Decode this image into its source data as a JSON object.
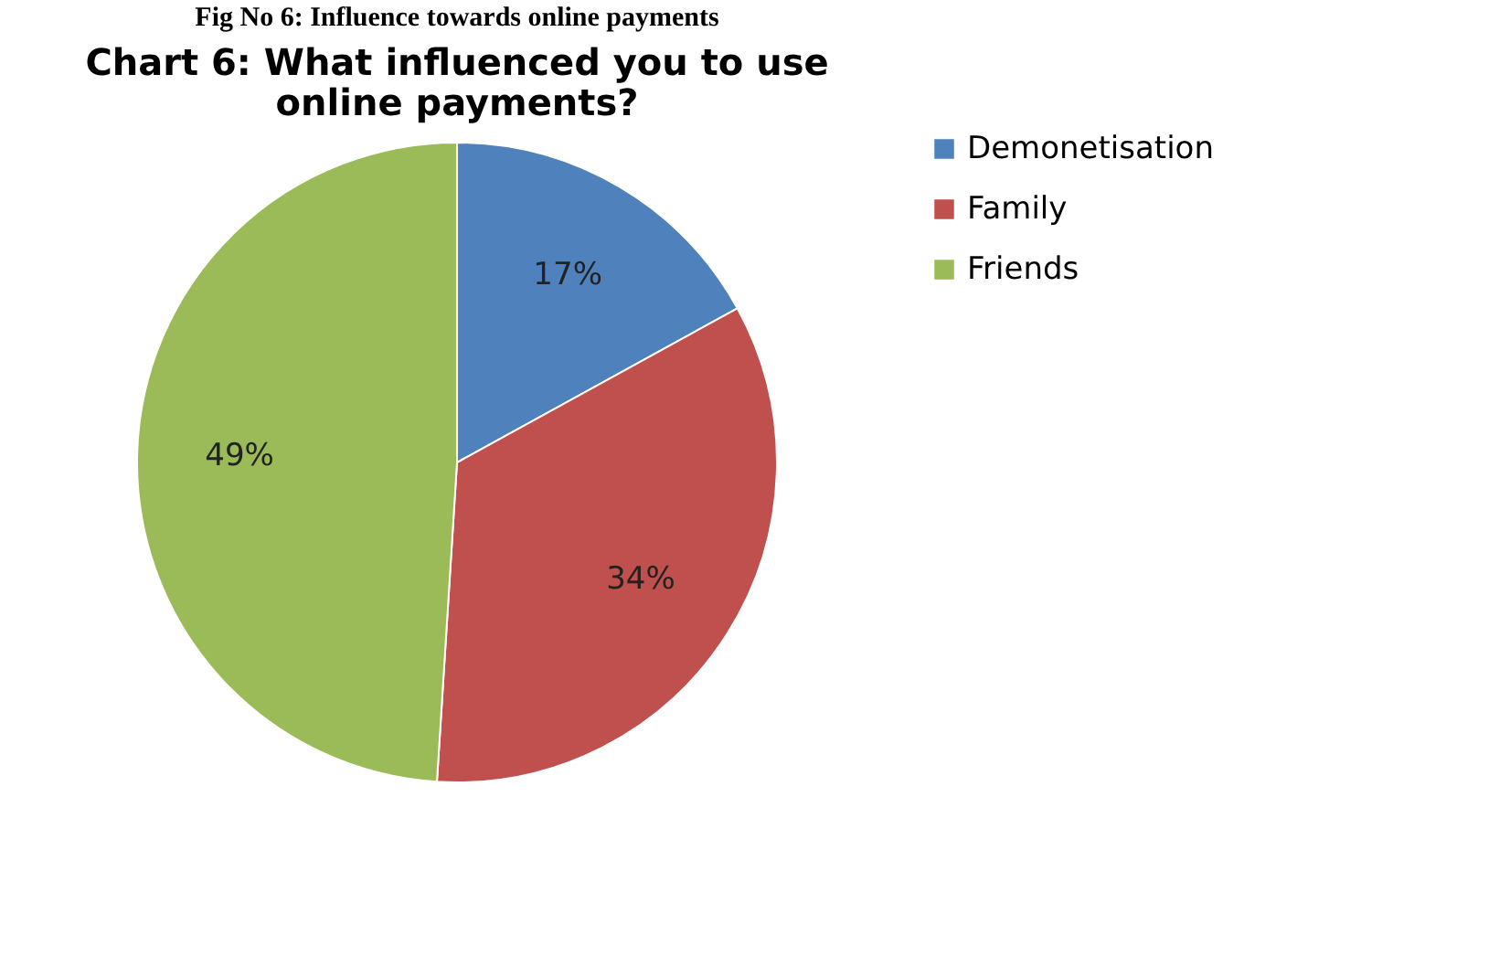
{
  "chart_data": {
    "type": "pie",
    "title": "Chart 6: What influenced you to use online payments?",
    "annotations": [
      "Fig No 6: Influence towards online payments"
    ],
    "categories": [
      "Demonetisation",
      "Family",
      "Friends"
    ],
    "values": [
      17,
      34,
      49
    ],
    "value_labels": [
      "17%",
      "34%",
      "49%"
    ],
    "colors": [
      "#4f81bd",
      "#c0504d",
      "#9bbb59"
    ],
    "legend": "right"
  }
}
